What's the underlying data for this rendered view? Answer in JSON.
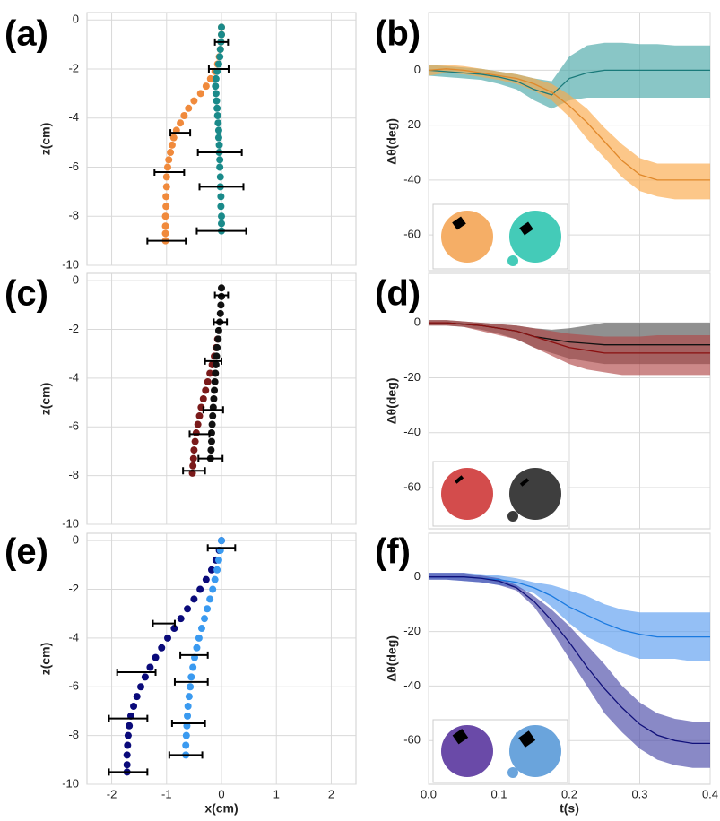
{
  "chart_data": [
    {
      "type": "scatter",
      "label": "(a)",
      "ylabel": "z(cm)",
      "xlim": [
        -2.45,
        2.45
      ],
      "xticks": [
        -2,
        -1,
        0,
        1,
        2
      ],
      "xtick_labels": false,
      "ylim": [
        -10,
        0.3
      ],
      "yticks": [
        0,
        -2,
        -4,
        -6,
        -8,
        -10
      ],
      "grid": true,
      "series": [
        {
          "color": "#f08a3c",
          "x": [
            0,
            0,
            -0.01,
            -0.02,
            -0.04,
            -0.07,
            -0.12,
            -0.2,
            -0.28,
            -0.38,
            -0.5,
            -0.6,
            -0.68,
            -0.75,
            -0.82,
            -0.87,
            -0.9,
            -0.93,
            -0.96,
            -0.98,
            -1.0,
            -1.0,
            -1.01,
            -1.01,
            -1.02,
            -1.02,
            -1.02,
            -1.02
          ],
          "values": [
            -0.3,
            -0.6,
            -0.9,
            -1.2,
            -1.5,
            -1.8,
            -2.1,
            -2.4,
            -2.7,
            -3.0,
            -3.3,
            -3.6,
            -3.9,
            -4.2,
            -4.5,
            -4.8,
            -5.1,
            -5.4,
            -5.7,
            -6.0,
            -6.4,
            -6.8,
            -7.2,
            -7.6,
            -8.0,
            -8.4,
            -8.7,
            -9.0
          ],
          "errorbars": {
            "x": [
              -0.75,
              -0.95,
              -1.0
            ],
            "values": [
              -4.6,
              -6.2,
              -9.0
            ],
            "xerr": [
              0.18,
              0.27,
              0.35
            ]
          }
        },
        {
          "color": "#1a8a8a",
          "x": [
            0,
            0,
            -0.01,
            -0.02,
            -0.03,
            -0.05,
            -0.08,
            -0.1,
            -0.11,
            -0.1,
            -0.09,
            -0.08,
            -0.07,
            -0.06,
            -0.05,
            -0.05,
            -0.04,
            -0.04,
            -0.03,
            -0.03,
            -0.02,
            -0.02,
            -0.01,
            -0.01,
            0,
            0,
            0
          ],
          "values": [
            -0.3,
            -0.6,
            -0.9,
            -1.2,
            -1.5,
            -1.8,
            -2.1,
            -2.4,
            -2.7,
            -3.0,
            -3.3,
            -3.6,
            -3.9,
            -4.2,
            -4.5,
            -4.8,
            -5.1,
            -5.4,
            -5.7,
            -6.0,
            -6.4,
            -6.8,
            -7.2,
            -7.6,
            -8.0,
            -8.3,
            -8.6
          ],
          "errorbars": {
            "x": [
              0,
              -0.05,
              -0.03,
              0,
              0
            ],
            "values": [
              -0.9,
              -2.0,
              -5.4,
              -6.8,
              -8.6
            ],
            "xerr": [
              0.12,
              0.18,
              0.4,
              0.4,
              0.45
            ]
          }
        }
      ]
    },
    {
      "type": "line",
      "label": "(b)",
      "ylabel": "Δθ(deg)",
      "xlim": [
        0,
        0.4
      ],
      "xticks": [
        {
          "value": 0,
          "label": "0.0"
        },
        0.1,
        0.2,
        0.3,
        0.4
      ],
      "xtick_labels": false,
      "ylim": [
        -73,
        21
      ],
      "yticks": [
        0,
        -20,
        -40,
        -60
      ],
      "grid": true,
      "x": [
        0,
        0.025,
        0.05,
        0.075,
        0.1,
        0.125,
        0.15,
        0.175,
        0.2,
        0.225,
        0.25,
        0.275,
        0.3,
        0.325,
        0.35,
        0.375,
        0.4
      ],
      "series": [
        {
          "color": "#4aa8a8",
          "line_color": "#1a7a7a",
          "values": [
            0,
            -0.5,
            -1,
            -1.5,
            -2.5,
            -4,
            -7,
            -9,
            -3,
            -1,
            0,
            0,
            0,
            0,
            0,
            0,
            0
          ],
          "upper": [
            2,
            1.5,
            1,
            0.5,
            -0.5,
            -1.5,
            -3,
            -4,
            5,
            9,
            10,
            10,
            9.5,
            9.5,
            9,
            9,
            9
          ],
          "lower": [
            -2,
            -2.5,
            -3,
            -3.5,
            -5,
            -7,
            -11,
            -14,
            -11,
            -10,
            -10,
            -10,
            -10,
            -10,
            -10,
            -10,
            -10
          ]
        },
        {
          "color": "#fba94a",
          "line_color": "#e0882a",
          "values": [
            0,
            0.5,
            0,
            -1,
            -2,
            -3,
            -5,
            -8,
            -13,
            -19,
            -26,
            -33,
            -38,
            -40,
            -40,
            -40,
            -40
          ],
          "upper": [
            2,
            2,
            1.5,
            0.5,
            -0.5,
            -1.5,
            -3,
            -5,
            -9,
            -14,
            -21,
            -27,
            -32,
            -34,
            -34,
            -34,
            -34
          ],
          "lower": [
            -2,
            -1,
            -1.5,
            -2.5,
            -3.5,
            -5,
            -7.5,
            -11,
            -17,
            -25,
            -32,
            -39,
            -44,
            -46,
            -47,
            -47,
            -47
          ]
        }
      ]
    },
    {
      "type": "scatter",
      "label": "(c)",
      "ylabel": "z(cm)",
      "xlim": [
        -2.45,
        2.45
      ],
      "xticks": [
        -2,
        -1,
        0,
        1,
        2
      ],
      "xtick_labels": false,
      "ylim": [
        -10,
        0.3
      ],
      "yticks": [
        0,
        -2,
        -4,
        -6,
        -8,
        -10
      ],
      "grid": true,
      "series": [
        {
          "color": "#7a1a1a",
          "x": [
            -0.07,
            -0.1,
            -0.13,
            -0.17,
            -0.21,
            -0.25,
            -0.29,
            -0.33,
            -0.37,
            -0.4,
            -0.43,
            -0.46,
            -0.48,
            -0.5,
            -0.51,
            -0.52,
            -0.53
          ],
          "values": [
            -2.4,
            -2.75,
            -3.1,
            -3.45,
            -3.8,
            -4.15,
            -4.5,
            -4.85,
            -5.2,
            -5.55,
            -5.9,
            -6.25,
            -6.6,
            -6.95,
            -7.3,
            -7.6,
            -7.9
          ],
          "errorbars": {
            "x": [
              -0.4,
              -0.5
            ],
            "values": [
              -6.3,
              -7.8
            ],
            "xerr": [
              0.18,
              0.2
            ]
          }
        },
        {
          "color": "#111111",
          "x": [
            0,
            0,
            -0.01,
            -0.02,
            -0.03,
            -0.05,
            -0.06,
            -0.08,
            -0.09,
            -0.1,
            -0.11,
            -0.12,
            -0.13,
            -0.14,
            -0.15,
            -0.16,
            -0.17,
            -0.18,
            -0.18,
            -0.19,
            -0.2
          ],
          "values": [
            -0.3,
            -0.65,
            -1.0,
            -1.35,
            -1.7,
            -2.05,
            -2.4,
            -2.75,
            -3.1,
            -3.45,
            -3.8,
            -4.15,
            -4.5,
            -4.85,
            -5.2,
            -5.55,
            -5.9,
            -6.25,
            -6.6,
            -6.95,
            -7.3
          ],
          "errorbars": {
            "x": [
              0,
              -0.02,
              -0.15,
              -0.15,
              -0.2
            ],
            "values": [
              -0.6,
              -1.7,
              -3.3,
              -5.3,
              -7.3
            ],
            "xerr": [
              0.12,
              0.12,
              0.15,
              0.18,
              0.22
            ]
          }
        }
      ]
    },
    {
      "type": "line",
      "label": "(d)",
      "ylabel": "Δθ(deg)",
      "xlim": [
        0,
        0.4
      ],
      "xticks": [
        {
          "value": 0,
          "label": "0.0"
        },
        0.1,
        0.2,
        0.3,
        0.4
      ],
      "xtick_labels": false,
      "ylim": [
        -75,
        18
      ],
      "yticks": [
        0,
        -20,
        -40,
        -60
      ],
      "grid": true,
      "x": [
        0,
        0.025,
        0.05,
        0.075,
        0.1,
        0.125,
        0.15,
        0.175,
        0.2,
        0.225,
        0.25,
        0.275,
        0.3,
        0.325,
        0.35,
        0.375,
        0.4
      ],
      "series": [
        {
          "color": "#555555",
          "line_color": "#111111",
          "values": [
            0,
            0,
            -0.5,
            -1,
            -2,
            -3,
            -5,
            -6,
            -7,
            -7.5,
            -8,
            -8,
            -8,
            -8,
            -8,
            -8,
            -8
          ],
          "upper": [
            1,
            1,
            0.5,
            0,
            -0.5,
            -1,
            -2,
            -2.5,
            -2,
            -1,
            0,
            0,
            0,
            0,
            0,
            0,
            0
          ],
          "lower": [
            -1,
            -1,
            -1.5,
            -2.5,
            -4,
            -6,
            -9,
            -11,
            -13,
            -14,
            -15,
            -15,
            -15,
            -15,
            -15,
            -15,
            -15
          ]
        },
        {
          "color": "#b04848",
          "line_color": "#8a1010",
          "values": [
            0,
            0,
            -0.5,
            -1,
            -2,
            -3,
            -5,
            -7,
            -9,
            -10,
            -11,
            -11,
            -11,
            -11,
            -11,
            -11,
            -11
          ],
          "upper": [
            1,
            1,
            0.5,
            0,
            -0.5,
            -1,
            -2,
            -3,
            -4,
            -4.5,
            -5,
            -5,
            -5,
            -4.5,
            -4.5,
            -4.5,
            -4.5
          ],
          "lower": [
            -1,
            -1,
            -1.5,
            -3,
            -4.5,
            -6,
            -9,
            -12,
            -15,
            -17,
            -18,
            -19,
            -19,
            -19,
            -19,
            -19,
            -19
          ]
        }
      ]
    },
    {
      "type": "scatter",
      "label": "(e)",
      "ylabel": "z(cm)",
      "xlabel": "x(cm)",
      "xlim": [
        -2.45,
        2.45
      ],
      "xticks": [
        -2,
        -1,
        0,
        1,
        2
      ],
      "xtick_labels": true,
      "ylim": [
        -10,
        0.3
      ],
      "yticks": [
        0,
        -2,
        -4,
        -6,
        -8,
        -10
      ],
      "grid": true,
      "series": [
        {
          "color": "#0a0a7a",
          "x": [
            0,
            -0.04,
            -0.1,
            -0.18,
            -0.28,
            -0.39,
            -0.5,
            -0.62,
            -0.74,
            -0.86,
            -0.98,
            -1.09,
            -1.2,
            -1.3,
            -1.39,
            -1.47,
            -1.54,
            -1.6,
            -1.65,
            -1.68,
            -1.7,
            -1.71,
            -1.72,
            -1.72,
            -1.72
          ],
          "values": [
            0,
            -0.4,
            -0.8,
            -1.2,
            -1.6,
            -2.0,
            -2.4,
            -2.8,
            -3.2,
            -3.6,
            -4.0,
            -4.4,
            -4.8,
            -5.2,
            -5.6,
            -6.0,
            -6.4,
            -6.8,
            -7.2,
            -7.6,
            -8.0,
            -8.4,
            -8.8,
            -9.2,
            -9.5
          ],
          "errorbars": {
            "x": [
              -1.05,
              -1.55,
              -1.7,
              -1.7
            ],
            "values": [
              -3.4,
              -5.4,
              -7.3,
              -9.5
            ],
            "xerr": [
              0.2,
              0.35,
              0.35,
              0.35
            ]
          }
        },
        {
          "color": "#3a9af0",
          "x": [
            0,
            -0.02,
            -0.05,
            -0.08,
            -0.12,
            -0.16,
            -0.21,
            -0.26,
            -0.31,
            -0.36,
            -0.41,
            -0.45,
            -0.49,
            -0.52,
            -0.55,
            -0.57,
            -0.59,
            -0.61,
            -0.62,
            -0.63,
            -0.64,
            -0.65,
            -0.65
          ],
          "values": [
            0,
            -0.4,
            -0.8,
            -1.2,
            -1.6,
            -2.0,
            -2.4,
            -2.8,
            -3.2,
            -3.6,
            -4.0,
            -4.4,
            -4.8,
            -5.2,
            -5.6,
            -6.0,
            -6.4,
            -6.8,
            -7.2,
            -7.6,
            -8.0,
            -8.4,
            -8.8
          ],
          "errorbars": {
            "x": [
              0,
              -0.5,
              -0.55,
              -0.6,
              -0.65
            ],
            "values": [
              -0.3,
              -4.7,
              -5.8,
              -7.5,
              -8.8
            ],
            "xerr": [
              0.25,
              0.25,
              0.3,
              0.3,
              0.3
            ]
          }
        }
      ]
    },
    {
      "type": "line",
      "label": "(f)",
      "ylabel": "Δθ(deg)",
      "xlabel": "t(s)",
      "xlim": [
        0,
        0.4
      ],
      "xticks": [
        {
          "value": 0,
          "label": "0.0"
        },
        0.1,
        0.2,
        0.3,
        0.4
      ],
      "xtick_labels": true,
      "ylim": [
        -76,
        16
      ],
      "yticks": [
        0,
        -20,
        -40,
        -60
      ],
      "grid": true,
      "x": [
        0,
        0.025,
        0.05,
        0.075,
        0.1,
        0.125,
        0.15,
        0.175,
        0.2,
        0.225,
        0.25,
        0.275,
        0.3,
        0.325,
        0.35,
        0.375,
        0.4
      ],
      "series": [
        {
          "color": "#5a9cf0",
          "line_color": "#1a7ae0",
          "values": [
            0,
            0,
            0,
            -0.5,
            -1,
            -2,
            -4,
            -7,
            -11,
            -14,
            -17,
            -19.5,
            -21,
            -22,
            -22,
            -22,
            -22
          ],
          "upper": [
            1.5,
            1.5,
            1.5,
            1,
            0.5,
            -0.5,
            -2,
            -3,
            -5,
            -7,
            -10,
            -12,
            -13,
            -13,
            -13,
            -13,
            -13
          ],
          "lower": [
            -1,
            -1,
            -1.5,
            -2,
            -3,
            -4,
            -6,
            -11,
            -17,
            -22,
            -25,
            -28,
            -30,
            -30,
            -30,
            -31,
            -31
          ]
        },
        {
          "color": "#4a4aa8",
          "line_color": "#10107a",
          "values": [
            0,
            0,
            0,
            -0.5,
            -1.5,
            -4,
            -9,
            -16,
            -24,
            -33,
            -41,
            -48,
            -54,
            -58,
            -60,
            -61,
            -61
          ],
          "upper": [
            1.5,
            1.5,
            1.5,
            0.5,
            -0.5,
            -3,
            -7,
            -12,
            -18,
            -25,
            -32,
            -40,
            -46,
            -50,
            -52,
            -53,
            -53
          ],
          "lower": [
            -1,
            -1,
            -1.5,
            -2,
            -3,
            -5,
            -11,
            -20,
            -30,
            -40,
            -50,
            -57,
            -63,
            -67,
            -69,
            -70,
            -70
          ]
        }
      ]
    }
  ]
}
